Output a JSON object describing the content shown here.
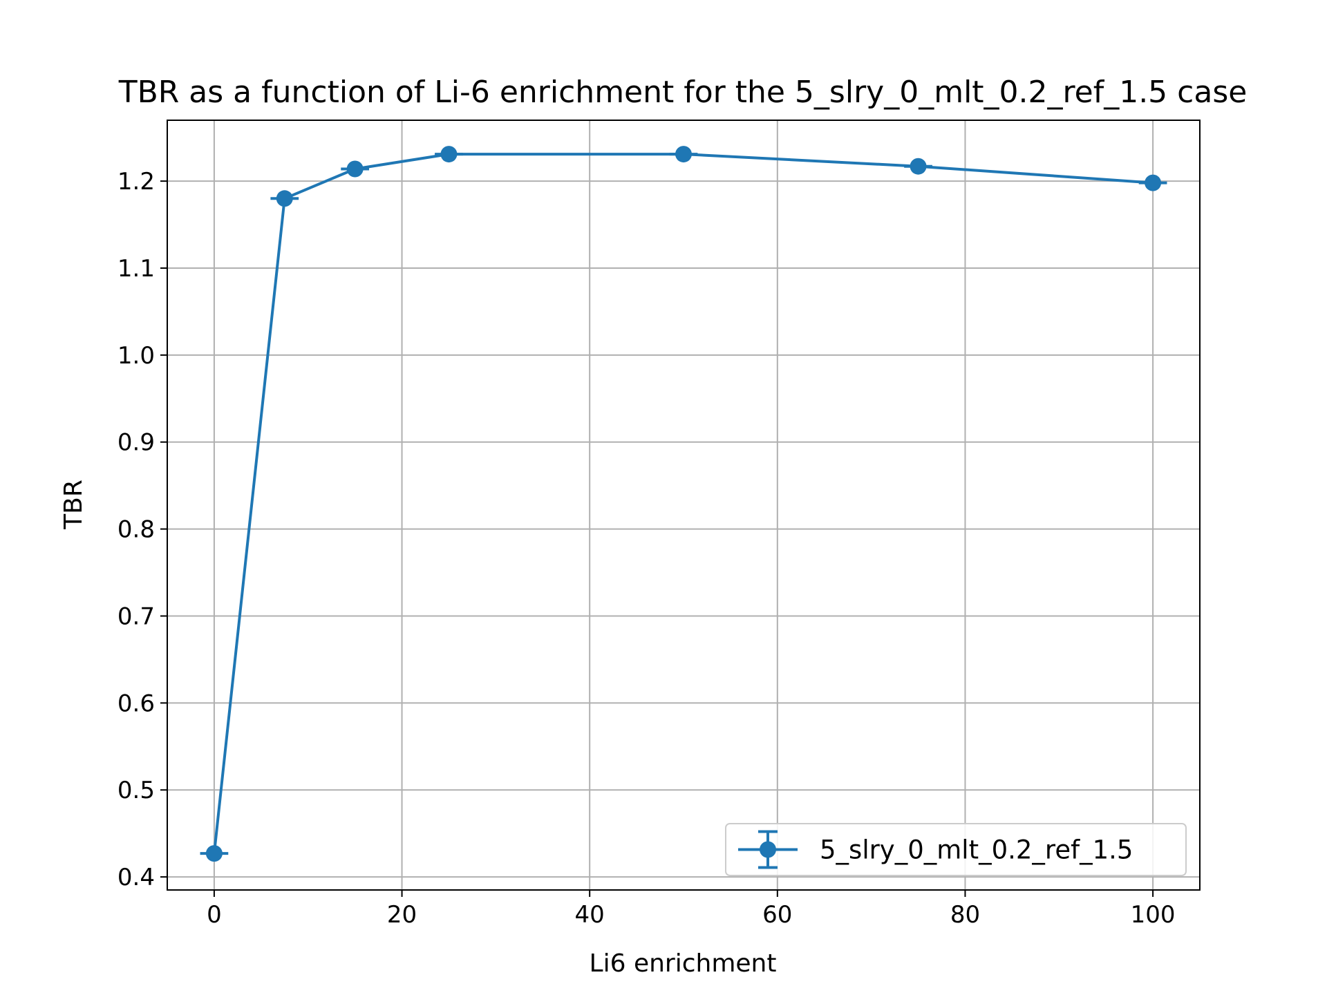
{
  "chart_data": {
    "type": "line",
    "title": "TBR as a function of Li-6 enrichment for the 5_slry_0_mlt_0.2_ref_1.5 case",
    "xlabel": "Li6 enrichment",
    "ylabel": "TBR",
    "xlim": [
      -5,
      105
    ],
    "ylim": [
      0.385,
      1.27
    ],
    "xticks": [
      0,
      20,
      40,
      60,
      80,
      100
    ],
    "xtick_labels": [
      "0",
      "20",
      "40",
      "60",
      "80",
      "100"
    ],
    "yticks": [
      0.4,
      0.5,
      0.6,
      0.7,
      0.8,
      0.9,
      1.0,
      1.1,
      1.2
    ],
    "ytick_labels": [
      "0.4",
      "0.5",
      "0.6",
      "0.7",
      "0.8",
      "0.9",
      "1.0",
      "1.1",
      "1.2"
    ],
    "grid": true,
    "legend_position": "lower-right",
    "series": [
      {
        "name": "5_slry_0_mlt_0.2_ref_1.5",
        "color": "#1f77b4",
        "x": [
          0,
          7.5,
          15,
          25,
          50,
          75,
          100
        ],
        "y": [
          0.427,
          1.18,
          1.214,
          1.231,
          1.231,
          1.217,
          1.198
        ],
        "yerr": [
          0.001,
          0.001,
          0.001,
          0.001,
          0.001,
          0.001,
          0.001
        ],
        "xerr": [
          1.5,
          1.5,
          1.5,
          1.5,
          1.5,
          1.5,
          1.5
        ],
        "marker": "circle",
        "errorbars": true
      }
    ]
  }
}
